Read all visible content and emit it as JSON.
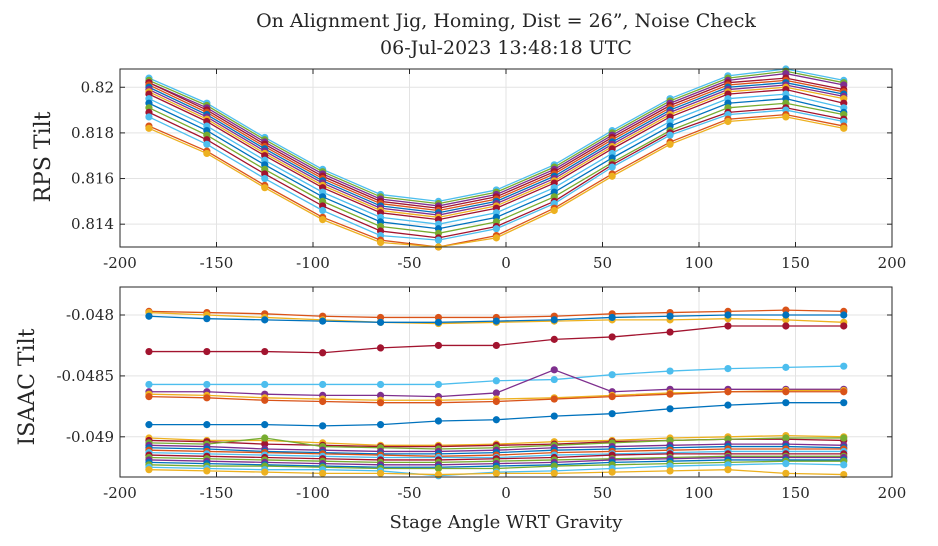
{
  "chart_data": [
    {
      "type": "line",
      "title": "On Alignment Jig, Homing, Dist = 26”, Noise Check",
      "subtitle": "06-Jul-2023 13:48:18 UTC",
      "xlabel": "",
      "ylabel": "RPS Tilt",
      "xlim": [
        -200,
        200
      ],
      "ylim": [
        0.813,
        0.8208
      ],
      "xticks": [
        "-200",
        "-150",
        "-100",
        "-50",
        "0",
        "50",
        "100",
        "150",
        "200"
      ],
      "yticks": [
        "0.814",
        "0.816",
        "0.818",
        "0.82"
      ],
      "grid": true,
      "x": [
        -185,
        -155,
        -125,
        -95,
        -65,
        -35,
        -5,
        25,
        55,
        85,
        115,
        145,
        175
      ],
      "series": [
        {
          "color": "#4DBEEE",
          "values": [
            0.8204,
            0.8193,
            0.8178,
            0.8164,
            0.8153,
            0.815,
            0.8155,
            0.8166,
            0.8181,
            0.8195,
            0.8205,
            0.8208,
            0.8203
          ]
        },
        {
          "color": "#77AC30",
          "values": [
            0.8203,
            0.8192,
            0.8177,
            0.8163,
            0.8152,
            0.8149,
            0.8154,
            0.8165,
            0.818,
            0.8194,
            0.8204,
            0.8207,
            0.8202
          ]
        },
        {
          "color": "#7E2F8E",
          "values": [
            0.8202,
            0.8191,
            0.8176,
            0.8162,
            0.8151,
            0.8148,
            0.8153,
            0.8164,
            0.8179,
            0.8193,
            0.8203,
            0.8206,
            0.8201
          ]
        },
        {
          "color": "#A2142F",
          "values": [
            0.8202,
            0.819,
            0.8175,
            0.8161,
            0.815,
            0.8147,
            0.8152,
            0.8163,
            0.8178,
            0.8192,
            0.8202,
            0.8204,
            0.8199
          ]
        },
        {
          "color": "#D95319",
          "values": [
            0.8201,
            0.8189,
            0.8174,
            0.816,
            0.8149,
            0.8146,
            0.8151,
            0.8162,
            0.8177,
            0.8191,
            0.8201,
            0.8203,
            0.8198
          ]
        },
        {
          "color": "#0072BD",
          "values": [
            0.82,
            0.8188,
            0.8173,
            0.8159,
            0.8148,
            0.8145,
            0.815,
            0.8161,
            0.8176,
            0.819,
            0.82,
            0.8202,
            0.8197
          ]
        },
        {
          "color": "#7E2F8E",
          "values": [
            0.8199,
            0.8187,
            0.8172,
            0.8158,
            0.8147,
            0.8144,
            0.8149,
            0.816,
            0.8175,
            0.8189,
            0.8199,
            0.8201,
            0.8196
          ]
        },
        {
          "color": "#EDB120",
          "values": [
            0.8198,
            0.8186,
            0.8171,
            0.8157,
            0.8146,
            0.8143,
            0.8148,
            0.8159,
            0.8174,
            0.8188,
            0.8198,
            0.82,
            0.8195
          ]
        },
        {
          "color": "#A2142F",
          "values": [
            0.8197,
            0.8185,
            0.817,
            0.8156,
            0.8145,
            0.8142,
            0.8147,
            0.8158,
            0.8173,
            0.8187,
            0.8197,
            0.8199,
            0.8193
          ]
        },
        {
          "color": "#4DBEEE",
          "values": [
            0.8195,
            0.8183,
            0.8168,
            0.8154,
            0.8143,
            0.814,
            0.8145,
            0.8156,
            0.8171,
            0.8185,
            0.8195,
            0.8197,
            0.8191
          ]
        },
        {
          "color": "#0072BD",
          "values": [
            0.8193,
            0.8181,
            0.8166,
            0.8152,
            0.8141,
            0.8138,
            0.8143,
            0.8154,
            0.8169,
            0.8183,
            0.8193,
            0.8195,
            0.8189
          ]
        },
        {
          "color": "#77AC30",
          "values": [
            0.8191,
            0.8179,
            0.8164,
            0.815,
            0.8139,
            0.8136,
            0.8141,
            0.8152,
            0.8167,
            0.8181,
            0.8191,
            0.8193,
            0.8188
          ]
        },
        {
          "color": "#A2142F",
          "values": [
            0.8189,
            0.8177,
            0.8162,
            0.8148,
            0.8137,
            0.8134,
            0.8139,
            0.815,
            0.8166,
            0.818,
            0.8189,
            0.8191,
            0.8186
          ]
        },
        {
          "color": "#4DBEEE",
          "values": [
            0.8187,
            0.8175,
            0.816,
            0.8146,
            0.8135,
            0.8133,
            0.8138,
            0.8149,
            0.8165,
            0.8179,
            0.8188,
            0.819,
            0.8185
          ]
        },
        {
          "color": "#D95319",
          "values": [
            0.8183,
            0.8172,
            0.8157,
            0.8143,
            0.8133,
            0.813,
            0.8135,
            0.8147,
            0.8162,
            0.8176,
            0.8186,
            0.8188,
            0.8183
          ]
        },
        {
          "color": "#EDB120",
          "values": [
            0.8182,
            0.8171,
            0.8156,
            0.8142,
            0.8132,
            0.813,
            0.8134,
            0.8146,
            0.8161,
            0.8175,
            0.8185,
            0.8187,
            0.8182
          ]
        }
      ]
    },
    {
      "type": "line",
      "title": "",
      "xlabel": "Stage Angle WRT Gravity",
      "ylabel": "ISAAC Tilt",
      "xlim": [
        -200,
        200
      ],
      "ylim": [
        -0.04933,
        -0.04777
      ],
      "xticks": [
        "-200",
        "-150",
        "-100",
        "-50",
        "0",
        "50",
        "100",
        "150",
        "200"
      ],
      "yticks": [
        "-0.048",
        "-0.0485",
        "-0.049"
      ],
      "grid": true,
      "x": [
        -185,
        -155,
        -125,
        -95,
        -65,
        -35,
        -5,
        25,
        55,
        85,
        115,
        145,
        175
      ],
      "series": [
        {
          "color": "#D95319",
          "values": [
            -0.04797,
            -0.04798,
            -0.04799,
            -0.04801,
            -0.04802,
            -0.04802,
            -0.04802,
            -0.04801,
            -0.04799,
            -0.04798,
            -0.04797,
            -0.04796,
            -0.04797
          ]
        },
        {
          "color": "#EDB120",
          "values": [
            -0.04798,
            -0.048,
            -0.04802,
            -0.04804,
            -0.04806,
            -0.04807,
            -0.04806,
            -0.04805,
            -0.04804,
            -0.04804,
            -0.04803,
            -0.04804,
            -0.04806
          ]
        },
        {
          "color": "#0072BD",
          "values": [
            -0.04801,
            -0.04803,
            -0.04804,
            -0.04805,
            -0.04806,
            -0.04806,
            -0.04805,
            -0.04804,
            -0.04802,
            -0.04801,
            -0.048,
            -0.048,
            -0.048
          ]
        },
        {
          "color": "#A2142F",
          "values": [
            -0.0483,
            -0.0483,
            -0.0483,
            -0.04831,
            -0.04827,
            -0.04825,
            -0.04825,
            -0.0482,
            -0.04818,
            -0.04814,
            -0.04809,
            -0.04809,
            -0.04809
          ]
        },
        {
          "color": "#4DBEEE",
          "values": [
            -0.04857,
            -0.04857,
            -0.04857,
            -0.04857,
            -0.04857,
            -0.04857,
            -0.04854,
            -0.04853,
            -0.04849,
            -0.04846,
            -0.04844,
            -0.04843,
            -0.04842
          ]
        },
        {
          "color": "#7E2F8E",
          "values": [
            -0.04863,
            -0.04863,
            -0.04865,
            -0.04866,
            -0.04866,
            -0.04867,
            -0.04864,
            -0.04845,
            -0.04863,
            -0.04861,
            -0.04861,
            -0.04861,
            -0.04861
          ]
        },
        {
          "color": "#EDB120",
          "values": [
            -0.04865,
            -0.04866,
            -0.04868,
            -0.04869,
            -0.0487,
            -0.0487,
            -0.04869,
            -0.04868,
            -0.04866,
            -0.04864,
            -0.04863,
            -0.04862,
            -0.04862
          ]
        },
        {
          "color": "#D95319",
          "values": [
            -0.04867,
            -0.04868,
            -0.0487,
            -0.04871,
            -0.04872,
            -0.04872,
            -0.04871,
            -0.04869,
            -0.04867,
            -0.04865,
            -0.04863,
            -0.04863,
            -0.04863
          ]
        },
        {
          "color": "#0072BD",
          "values": [
            -0.0489,
            -0.0489,
            -0.0489,
            -0.04891,
            -0.0489,
            -0.04887,
            -0.04886,
            -0.04883,
            -0.04881,
            -0.04877,
            -0.04874,
            -0.04872,
            -0.04872
          ]
        },
        {
          "color": "#EDB120",
          "values": [
            -0.04901,
            -0.04903,
            -0.04903,
            -0.04905,
            -0.04907,
            -0.04907,
            -0.04906,
            -0.04904,
            -0.04903,
            -0.04901,
            -0.049,
            -0.04899,
            -0.049
          ]
        },
        {
          "color": "#A2142F",
          "values": [
            -0.04903,
            -0.04904,
            -0.04906,
            -0.04907,
            -0.04908,
            -0.04908,
            -0.04907,
            -0.04906,
            -0.04904,
            -0.04903,
            -0.04902,
            -0.04902,
            -0.04903
          ]
        },
        {
          "color": "#77AC30",
          "values": [
            -0.04905,
            -0.04906,
            -0.04901,
            -0.04908,
            -0.04909,
            -0.0491,
            -0.04909,
            -0.04907,
            -0.04905,
            -0.04903,
            -0.04902,
            -0.04901,
            -0.04901
          ]
        },
        {
          "color": "#7E2F8E",
          "values": [
            -0.04907,
            -0.04908,
            -0.0491,
            -0.04911,
            -0.04912,
            -0.04912,
            -0.04911,
            -0.04909,
            -0.04908,
            -0.04907,
            -0.04906,
            -0.04906,
            -0.04907
          ]
        },
        {
          "color": "#0072BD",
          "values": [
            -0.04909,
            -0.0491,
            -0.04912,
            -0.04913,
            -0.04914,
            -0.04914,
            -0.04913,
            -0.04911,
            -0.0491,
            -0.04909,
            -0.04908,
            -0.04908,
            -0.04909
          ]
        },
        {
          "color": "#D95319",
          "values": [
            -0.04911,
            -0.04912,
            -0.04913,
            -0.04914,
            -0.04915,
            -0.04916,
            -0.04915,
            -0.04913,
            -0.04912,
            -0.04911,
            -0.0491,
            -0.0491,
            -0.0491
          ]
        },
        {
          "color": "#4DBEEE",
          "values": [
            -0.04913,
            -0.04914,
            -0.04915,
            -0.04916,
            -0.04917,
            -0.04917,
            -0.04917,
            -0.04915,
            -0.04914,
            -0.04913,
            -0.04912,
            -0.04912,
            -0.04912
          ]
        },
        {
          "color": "#A2142F",
          "values": [
            -0.04915,
            -0.04916,
            -0.04917,
            -0.04918,
            -0.04919,
            -0.04919,
            -0.04918,
            -0.04917,
            -0.04915,
            -0.04914,
            -0.04914,
            -0.04914,
            -0.04914
          ]
        },
        {
          "color": "#77AC30",
          "values": [
            -0.04917,
            -0.04918,
            -0.04919,
            -0.0492,
            -0.04921,
            -0.04921,
            -0.0492,
            -0.04919,
            -0.04918,
            -0.04917,
            -0.04916,
            -0.04916,
            -0.04916
          ]
        },
        {
          "color": "#7E2F8E",
          "values": [
            -0.04919,
            -0.0492,
            -0.04921,
            -0.04922,
            -0.04923,
            -0.04923,
            -0.04922,
            -0.04921,
            -0.04919,
            -0.04918,
            -0.04917,
            -0.04917,
            -0.04917
          ]
        },
        {
          "color": "#0072BD",
          "values": [
            -0.04921,
            -0.04922,
            -0.04923,
            -0.04924,
            -0.04925,
            -0.04925,
            -0.04924,
            -0.04923,
            -0.04921,
            -0.0492,
            -0.04919,
            -0.04919,
            -0.04919
          ]
        },
        {
          "color": "#77AC30",
          "values": [
            -0.04923,
            -0.04924,
            -0.04924,
            -0.04925,
            -0.04926,
            -0.04926,
            -0.04926,
            -0.04924,
            -0.04923,
            -0.04922,
            -0.04921,
            -0.0492,
            -0.0492
          ]
        },
        {
          "color": "#4DBEEE",
          "values": [
            -0.04925,
            -0.04926,
            -0.04927,
            -0.04927,
            -0.04928,
            -0.04932,
            -0.04929,
            -0.04928,
            -0.04926,
            -0.04924,
            -0.04923,
            -0.04922,
            -0.04923
          ]
        },
        {
          "color": "#EDB120",
          "values": [
            -0.04927,
            -0.04928,
            -0.04929,
            -0.0493,
            -0.0493,
            -0.04931,
            -0.0493,
            -0.0493,
            -0.04929,
            -0.04928,
            -0.04927,
            -0.0493,
            -0.04931
          ]
        }
      ]
    }
  ]
}
